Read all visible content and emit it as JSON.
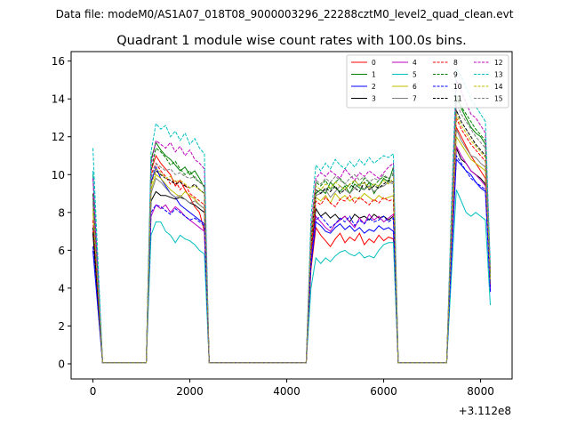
{
  "suptitle": "Data file: modeM0/AS1A07_018T08_9000003296_22288cztM0_level2_quad_clean.evt",
  "chart_data": {
    "type": "line",
    "title": "Quadrant 1 module wise count rates with 100.0s bins.",
    "xlabel": "",
    "ylabel": "",
    "x_offset_label": "+3.112e8",
    "xlim": [
      -450,
      8650
    ],
    "ylim": [
      -0.8,
      16.5
    ],
    "xticks": [
      0,
      2000,
      4000,
      6000,
      8000
    ],
    "yticks": [
      0,
      2,
      4,
      6,
      8,
      10,
      12,
      14,
      16
    ],
    "x": [
      0,
      100,
      200,
      1100,
      1200,
      1300,
      1400,
      1500,
      1600,
      1700,
      1800,
      1900,
      2000,
      2100,
      2200,
      2300,
      2400,
      4400,
      4500,
      4600,
      4700,
      4800,
      4900,
      5000,
      5100,
      5200,
      5300,
      5400,
      5500,
      5600,
      5700,
      5800,
      5900,
      6000,
      6100,
      6200,
      6300,
      7300,
      7400,
      7500,
      7600,
      7700,
      7800,
      7900,
      8000,
      8100,
      8200
    ],
    "series": [
      {
        "name": "0",
        "color": "#ff0000",
        "dash": "solid",
        "values": [
          7.0,
          3.5,
          0.05,
          0.05,
          10.2,
          11.0,
          10.6,
          10.3,
          10.0,
          9.4,
          9.7,
          9.2,
          8.8,
          8.3,
          8.0,
          7.0,
          0.05,
          0.05,
          5.0,
          7.2,
          6.8,
          6.5,
          6.2,
          6.6,
          6.9,
          6.4,
          6.7,
          6.5,
          6.9,
          6.3,
          6.6,
          6.4,
          6.8,
          6.5,
          6.7,
          6.6,
          0.05,
          0.05,
          6.0,
          12.5,
          12.0,
          11.5,
          11.0,
          10.6,
          10.2,
          9.8,
          4.0
        ]
      },
      {
        "name": "1",
        "color": "#008000",
        "dash": "solid",
        "values": [
          10.0,
          5.0,
          0.05,
          0.05,
          10.8,
          11.7,
          11.3,
          11.0,
          10.8,
          10.5,
          10.2,
          10.4,
          10.0,
          10.2,
          9.8,
          9.3,
          0.05,
          0.05,
          6.5,
          9.0,
          9.2,
          9.0,
          9.6,
          9.3,
          9.1,
          9.4,
          9.0,
          9.5,
          9.3,
          9.2,
          9.6,
          9.0,
          9.4,
          9.8,
          9.6,
          10.4,
          0.05,
          0.05,
          7.5,
          14.2,
          13.5,
          13.0,
          12.5,
          12.2,
          12.0,
          11.6,
          4.6
        ]
      },
      {
        "name": "2",
        "color": "#0000ff",
        "dash": "solid",
        "values": [
          6.0,
          3.0,
          0.05,
          0.05,
          9.6,
          10.4,
          9.8,
          9.4,
          9.0,
          8.8,
          8.4,
          8.2,
          8.0,
          7.8,
          7.6,
          7.4,
          0.05,
          0.05,
          5.2,
          7.5,
          7.3,
          7.0,
          6.9,
          7.2,
          7.4,
          7.1,
          7.3,
          7.0,
          7.2,
          6.9,
          7.1,
          7.0,
          7.3,
          7.1,
          7.2,
          7.0,
          0.05,
          0.05,
          5.6,
          10.8,
          10.5,
          10.2,
          10.0,
          9.6,
          9.3,
          9.1,
          3.8
        ]
      },
      {
        "name": "3",
        "color": "#000000",
        "dash": "solid",
        "values": [
          6.9,
          3.5,
          0.05,
          0.05,
          8.6,
          9.1,
          8.9,
          8.9,
          8.8,
          8.7,
          8.8,
          8.7,
          8.5,
          8.4,
          8.2,
          8.0,
          0.05,
          0.05,
          5.8,
          8.2,
          7.8,
          8.0,
          7.7,
          7.9,
          7.6,
          7.8,
          7.5,
          7.9,
          7.7,
          7.8,
          7.6,
          7.9,
          7.7,
          7.8,
          7.6,
          7.8,
          0.05,
          0.05,
          6.2,
          11.4,
          10.8,
          10.6,
          10.2,
          10.0,
          9.8,
          9.5,
          4.1
        ]
      },
      {
        "name": "4",
        "color": "#bf00bf",
        "dash": "solid",
        "values": [
          9.0,
          4.5,
          0.05,
          0.05,
          7.8,
          8.4,
          8.2,
          8.4,
          8.0,
          8.3,
          8.1,
          7.8,
          7.6,
          7.4,
          7.2,
          7.0,
          0.05,
          0.05,
          5.5,
          7.8,
          7.5,
          7.2,
          7.0,
          7.4,
          7.6,
          7.8,
          7.5,
          7.2,
          7.7,
          7.4,
          7.9,
          7.6,
          7.8,
          7.5,
          7.7,
          7.9,
          0.05,
          0.05,
          6.0,
          11.5,
          11.0,
          10.6,
          10.2,
          10.0,
          9.7,
          9.4,
          4.0
        ]
      },
      {
        "name": "5",
        "color": "#00bfbf",
        "dash": "solid",
        "values": [
          10.2,
          5.0,
          0.05,
          0.05,
          6.8,
          7.5,
          7.5,
          7.0,
          6.8,
          6.4,
          6.8,
          6.6,
          6.5,
          6.3,
          6.0,
          5.8,
          0.05,
          0.05,
          4.0,
          5.6,
          5.3,
          5.6,
          5.4,
          5.7,
          5.9,
          6.0,
          5.8,
          5.7,
          5.9,
          5.6,
          5.7,
          5.6,
          6.0,
          6.3,
          6.4,
          6.4,
          0.05,
          0.05,
          4.8,
          9.2,
          8.6,
          8.0,
          7.8,
          8.0,
          7.8,
          7.6,
          3.1
        ]
      },
      {
        "name": "6",
        "color": "#bfbf00",
        "dash": "solid",
        "values": [
          8.0,
          4.0,
          0.05,
          0.05,
          9.2,
          10.0,
          9.8,
          9.5,
          9.2,
          9.0,
          8.8,
          9.1,
          8.9,
          8.7,
          8.4,
          8.2,
          0.05,
          0.05,
          6.0,
          8.8,
          8.6,
          8.9,
          8.5,
          9.0,
          8.7,
          8.9,
          8.6,
          8.8,
          8.7,
          9.0,
          8.8,
          8.6,
          8.9,
          8.7,
          8.8,
          8.9,
          0.05,
          0.05,
          6.8,
          12.0,
          11.6,
          11.2,
          10.8,
          10.6,
          10.4,
          10.2,
          4.3
        ]
      },
      {
        "name": "7",
        "color": "#808080",
        "dash": "solid",
        "values": [
          8.5,
          4.2,
          0.05,
          0.05,
          9.0,
          9.8,
          9.6,
          9.3,
          9.0,
          8.8,
          8.9,
          8.7,
          8.5,
          8.6,
          8.4,
          8.2,
          0.05,
          0.05,
          6.2,
          8.9,
          9.0,
          9.2,
          8.8,
          9.1,
          9.4,
          9.2,
          9.0,
          9.3,
          9.5,
          9.2,
          9.4,
          9.1,
          9.3,
          9.4,
          9.6,
          9.5,
          0.05,
          0.05,
          7.0,
          12.4,
          11.8,
          11.4,
          11.0,
          10.9,
          10.6,
          10.4,
          4.4
        ]
      },
      {
        "name": "8",
        "color": "#ff0000",
        "dash": "dashed",
        "values": [
          7.6,
          3.8,
          0.05,
          0.05,
          10.0,
          10.6,
          10.2,
          9.9,
          9.5,
          9.7,
          9.2,
          9.5,
          9.0,
          8.8,
          8.6,
          8.4,
          0.05,
          0.05,
          6.0,
          8.6,
          8.4,
          8.8,
          8.5,
          8.3,
          8.7,
          8.6,
          8.9,
          8.5,
          8.8,
          8.6,
          8.4,
          8.7,
          8.5,
          8.8,
          8.6,
          8.7,
          0.05,
          0.05,
          7.0,
          13.0,
          12.4,
          12.0,
          11.6,
          11.3,
          11.0,
          10.7,
          4.5
        ]
      },
      {
        "name": "9",
        "color": "#008000",
        "dash": "dashed",
        "values": [
          9.0,
          4.5,
          0.05,
          0.05,
          10.2,
          11.4,
          11.2,
          10.9,
          10.5,
          10.7,
          10.3,
          10.0,
          10.2,
          9.8,
          9.6,
          9.4,
          0.05,
          0.05,
          7.0,
          9.6,
          9.4,
          9.7,
          9.2,
          9.6,
          9.8,
          9.5,
          9.3,
          9.7,
          9.4,
          9.8,
          9.6,
          9.4,
          9.7,
          9.9,
          9.8,
          10.0,
          0.05,
          0.05,
          7.8,
          14.0,
          13.6,
          13.2,
          12.8,
          12.4,
          12.1,
          11.8,
          4.8
        ]
      },
      {
        "name": "10",
        "color": "#0000ff",
        "dash": "dashed",
        "values": [
          6.2,
          3.1,
          0.05,
          0.05,
          8.0,
          8.4,
          8.3,
          8.1,
          7.9,
          8.2,
          8.0,
          7.8,
          7.6,
          7.7,
          7.5,
          7.3,
          0.05,
          0.05,
          5.4,
          7.6,
          7.8,
          7.5,
          7.2,
          7.4,
          7.7,
          7.5,
          7.8,
          7.3,
          7.6,
          7.4,
          7.7,
          7.5,
          7.6,
          7.8,
          7.5,
          7.7,
          0.05,
          0.05,
          5.8,
          11.0,
          10.6,
          10.2,
          9.8,
          9.6,
          9.4,
          9.2,
          3.9
        ]
      },
      {
        "name": "11",
        "color": "#000000",
        "dash": "dashed",
        "values": [
          7.2,
          3.6,
          0.05,
          0.05,
          9.5,
          10.2,
          10.0,
          9.8,
          9.7,
          9.5,
          9.6,
          9.4,
          9.3,
          9.5,
          9.2,
          9.0,
          0.05,
          0.05,
          6.5,
          9.2,
          9.0,
          9.3,
          9.1,
          9.4,
          9.0,
          9.2,
          9.5,
          9.3,
          9.1,
          9.6,
          9.2,
          9.4,
          9.3,
          9.5,
          9.7,
          9.6,
          0.05,
          0.05,
          7.5,
          13.4,
          12.8,
          12.4,
          12.0,
          11.6,
          11.3,
          11.0,
          4.6
        ]
      },
      {
        "name": "12",
        "color": "#bf00bf",
        "dash": "dashed",
        "values": [
          9.8,
          4.9,
          0.05,
          0.05,
          10.5,
          11.8,
          11.6,
          11.4,
          11.7,
          11.2,
          11.5,
          11.0,
          11.3,
          10.8,
          10.6,
          10.3,
          0.05,
          0.05,
          7.2,
          9.8,
          10.1,
          9.9,
          10.2,
          10.0,
          9.8,
          10.3,
          10.0,
          9.7,
          10.1,
          9.9,
          10.2,
          10.0,
          9.8,
          10.1,
          10.4,
          10.6,
          0.05,
          0.05,
          8.0,
          15.0,
          14.4,
          13.8,
          13.2,
          13.0,
          12.6,
          12.2,
          5.0
        ]
      },
      {
        "name": "13",
        "color": "#00bfbf",
        "dash": "dashed",
        "values": [
          11.4,
          5.7,
          0.05,
          0.05,
          11.2,
          12.7,
          12.4,
          12.6,
          12.0,
          12.3,
          11.8,
          12.2,
          11.6,
          11.9,
          11.4,
          11.1,
          0.05,
          0.05,
          7.8,
          10.5,
          10.2,
          10.6,
          10.3,
          10.8,
          10.5,
          10.3,
          10.7,
          10.4,
          10.8,
          10.5,
          10.9,
          10.6,
          10.8,
          11.0,
          10.9,
          11.1,
          0.05,
          0.05,
          8.6,
          15.6,
          15.2,
          14.6,
          14.0,
          13.6,
          13.2,
          12.8,
          5.2
        ]
      },
      {
        "name": "14",
        "color": "#bfbf00",
        "dash": "dashed",
        "values": [
          8.2,
          4.1,
          0.05,
          0.05,
          9.4,
          10.3,
          10.1,
          9.8,
          9.9,
          9.6,
          9.7,
          9.5,
          9.3,
          9.4,
          9.2,
          9.0,
          0.05,
          0.05,
          6.6,
          9.4,
          9.2,
          9.5,
          9.3,
          9.6,
          9.4,
          9.2,
          9.5,
          9.7,
          9.4,
          9.6,
          9.3,
          9.5,
          9.4,
          9.7,
          9.5,
          9.8,
          0.05,
          0.05,
          7.4,
          13.2,
          12.6,
          12.2,
          11.8,
          11.5,
          11.2,
          10.9,
          4.5
        ]
      },
      {
        "name": "15",
        "color": "#808080",
        "dash": "dashed",
        "values": [
          8.6,
          4.3,
          0.05,
          0.05,
          9.8,
          10.6,
          10.4,
          10.2,
          10.3,
          10.0,
          10.1,
          9.9,
          9.8,
          9.9,
          9.6,
          9.4,
          0.05,
          0.05,
          6.9,
          9.7,
          9.5,
          9.8,
          9.6,
          9.9,
          9.7,
          9.5,
          9.8,
          10.0,
          9.7,
          9.9,
          9.6,
          9.8,
          9.7,
          10.0,
          9.8,
          10.1,
          0.05,
          0.05,
          7.6,
          13.8,
          13.2,
          12.8,
          12.4,
          12.0,
          11.7,
          11.4,
          4.7
        ]
      }
    ],
    "legend": {
      "position": "top-right",
      "columns": 4
    }
  }
}
